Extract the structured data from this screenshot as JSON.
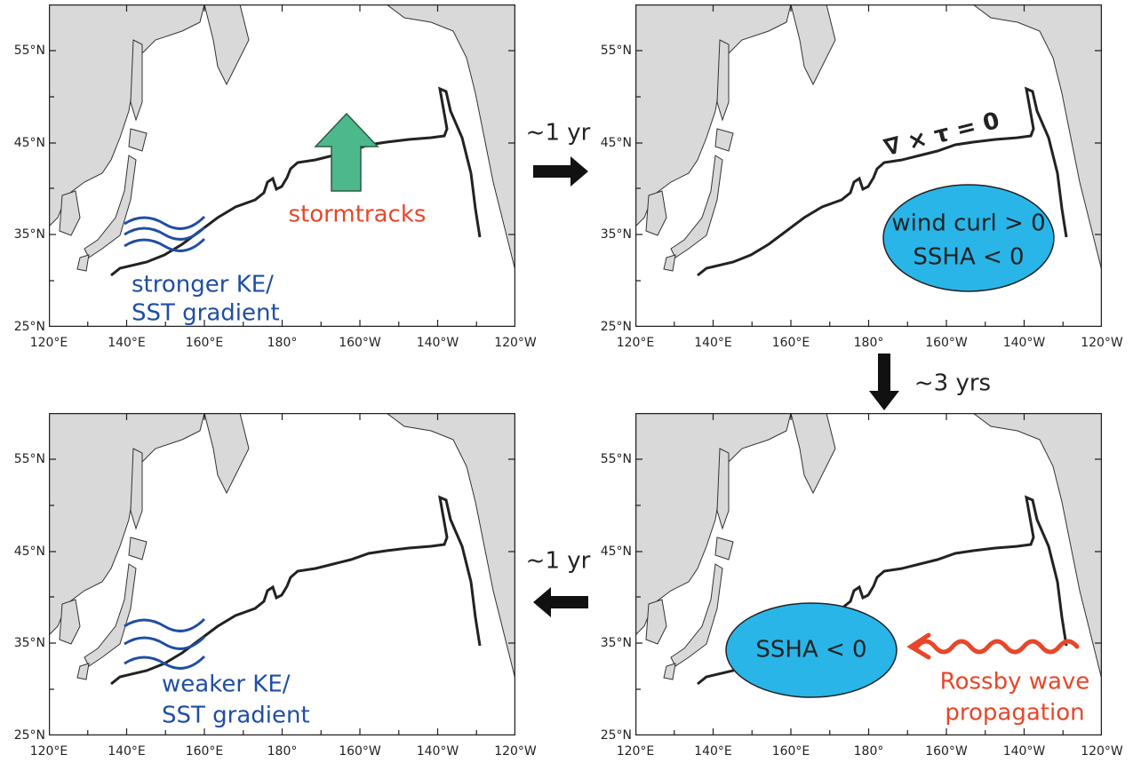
{
  "axes": {
    "lat_labels": [
      "55°N",
      "45°N",
      "35°N",
      "25°N"
    ],
    "lon_labels": [
      "120°E",
      "140°E",
      "160°E",
      "180°",
      "160°W",
      "140°W",
      "120°W"
    ]
  },
  "panels": [
    {
      "annotations": [
        "stormtracks",
        "stronger KE/",
        "SST gradient"
      ]
    },
    {
      "annotations": [
        "∇ × τ = 0",
        "wind curl > 0",
        "SSHA < 0"
      ]
    },
    {
      "annotations": [
        "weaker KE/",
        "SST gradient"
      ]
    },
    {
      "annotations": [
        "SSHA < 0",
        "Rossby wave",
        "propagation"
      ]
    }
  ],
  "arrows": [
    {
      "label": "~1 yr"
    },
    {
      "label": "~3 yrs"
    },
    {
      "label": "~1 yr"
    }
  ]
}
